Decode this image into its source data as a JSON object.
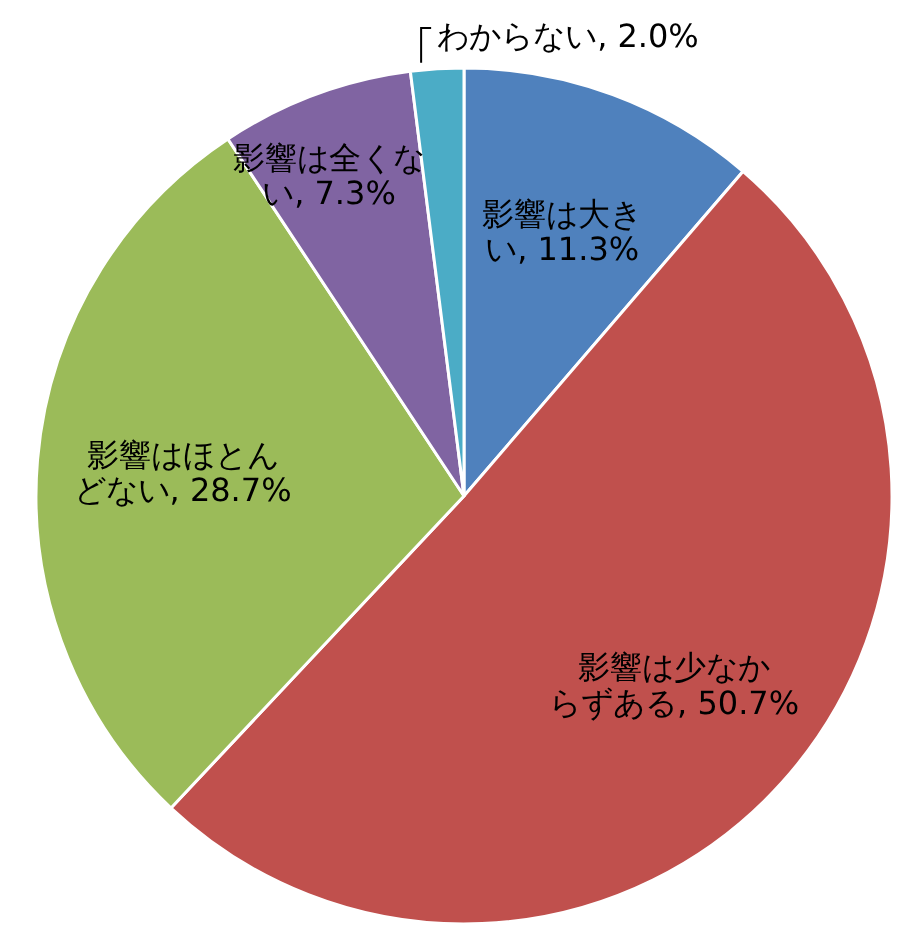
{
  "chart_data": {
    "type": "pie",
    "categories": [
      "影響は大きい",
      "影響は少なからずある",
      "影響はほとんどない",
      "影響は全くない",
      "わからない"
    ],
    "values": [
      11.3,
      50.7,
      28.7,
      7.3,
      2.0
    ],
    "value_labels": [
      "11.3%",
      "50.7%",
      "28.7%",
      "7.3%",
      "2.0%"
    ],
    "colors": [
      "#4f81bd",
      "#c0504d",
      "#9bbb59",
      "#8064a2",
      "#4bacc6"
    ],
    "legend": false
  }
}
